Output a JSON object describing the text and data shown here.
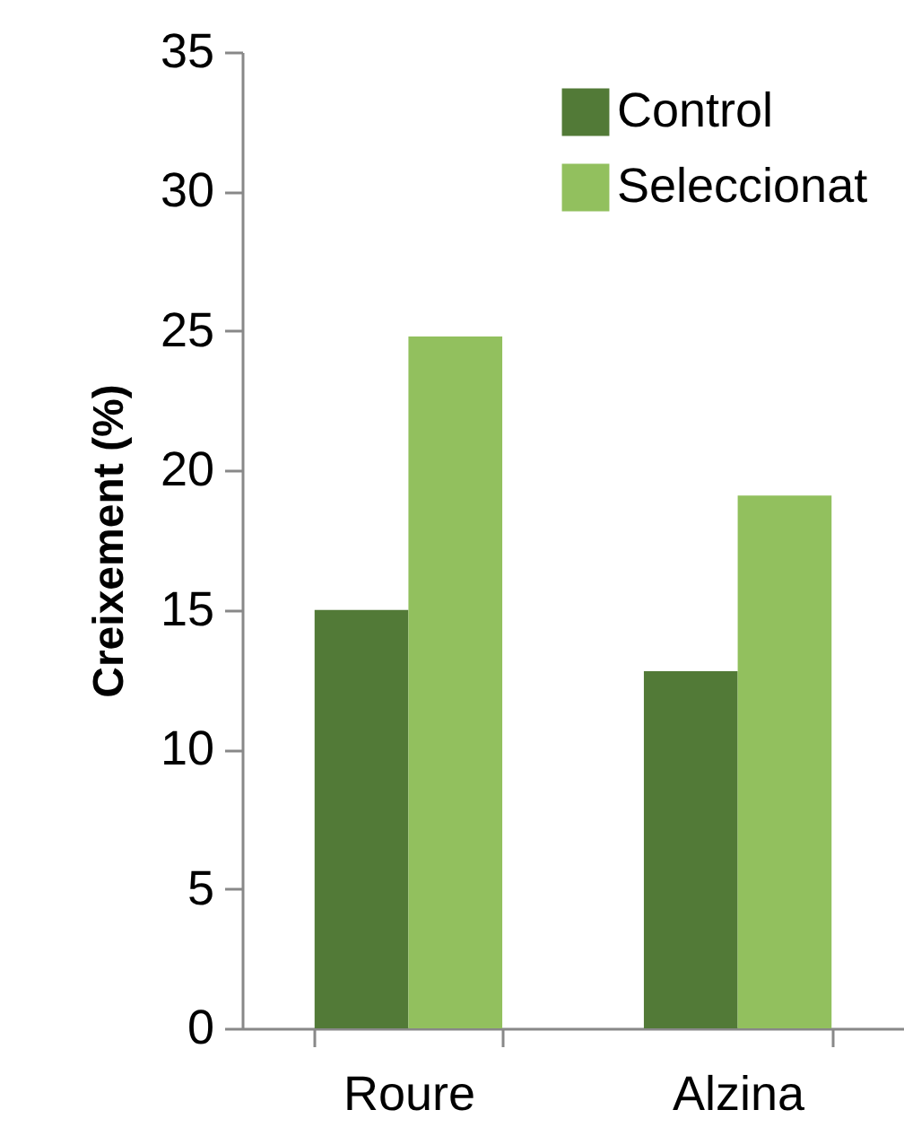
{
  "chart_data": {
    "type": "bar",
    "ylabel": "Creixement (%)",
    "categories": [
      "Roure",
      "Alzina"
    ],
    "series": [
      {
        "name": "Control",
        "color": "#527a37",
        "values": [
          15.0,
          12.8
        ]
      },
      {
        "name": "Seleccionat",
        "color": "#92c05e",
        "values": [
          24.8,
          19.1
        ]
      }
    ],
    "ylim": [
      0,
      35
    ],
    "yticks": [
      0,
      5,
      10,
      15,
      20,
      25,
      30,
      35
    ],
    "grid": false,
    "legend": "top right"
  }
}
